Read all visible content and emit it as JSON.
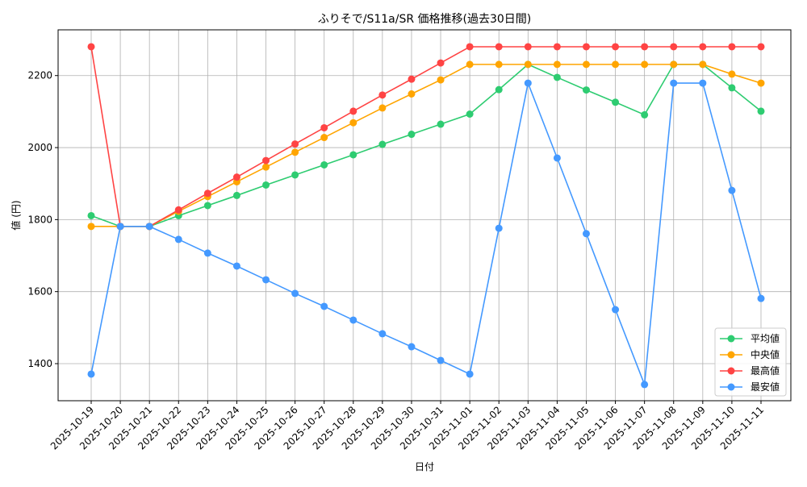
{
  "chart_data": {
    "type": "line",
    "title": "ふりそで/S11a/SR 価格推移(過去30日間)",
    "xlabel": "日付",
    "ylabel": "値 (円)",
    "ylim": [
      1297,
      2327
    ],
    "yticks": [
      1400,
      1600,
      1800,
      2000,
      2200
    ],
    "grid": true,
    "legend_position": "bottom-right",
    "categories": [
      "2025-10-19",
      "2025-10-20",
      "2025-10-21",
      "2025-10-22",
      "2025-10-23",
      "2025-10-24",
      "2025-10-25",
      "2025-10-26",
      "2025-10-27",
      "2025-10-28",
      "2025-10-29",
      "2025-10-30",
      "2025-10-31",
      "2025-11-01",
      "2025-11-02",
      "2025-11-03",
      "2025-11-04",
      "2025-11-05",
      "2025-11-06",
      "2025-11-07",
      "2025-11-08",
      "2025-11-09",
      "2025-11-10",
      "2025-11-11"
    ],
    "series": [
      {
        "name": "平均値",
        "color": "#2ecc71",
        "values": [
          1811,
          1781,
          1781,
          1811,
          1839,
          1867,
          1896,
          1924,
          1952,
          1980,
          2009,
          2037,
          2065,
          2093,
          2161,
          2231,
          2195,
          2160,
          2126,
          2091,
          2231,
          2231,
          2166,
          2101
        ]
      },
      {
        "name": "中央値",
        "color": "#ffa500",
        "values": [
          1781,
          1781,
          1781,
          1823,
          1864,
          1905,
          1946,
          1987,
          2028,
          2069,
          2110,
          2149,
          2188,
          2231,
          2231,
          2231,
          2231,
          2231,
          2231,
          2231,
          2231,
          2231,
          2204,
          2179
        ]
      },
      {
        "name": "最高値",
        "color": "#ff4444",
        "values": [
          2280,
          1781,
          1781,
          1827,
          1873,
          1918,
          1964,
          2010,
          2055,
          2101,
          2146,
          2190,
          2235,
          2280,
          2280,
          2280,
          2280,
          2280,
          2280,
          2280,
          2280,
          2280,
          2280,
          2280
        ]
      },
      {
        "name": "最安値",
        "color": "#4499ff",
        "values": [
          1371,
          1781,
          1781,
          1745,
          1707,
          1671,
          1633,
          1595,
          1559,
          1521,
          1483,
          1447,
          1409,
          1371,
          1776,
          2179,
          1971,
          1761,
          1550,
          1342,
          2179,
          2179,
          1881,
          1581
        ]
      }
    ]
  }
}
